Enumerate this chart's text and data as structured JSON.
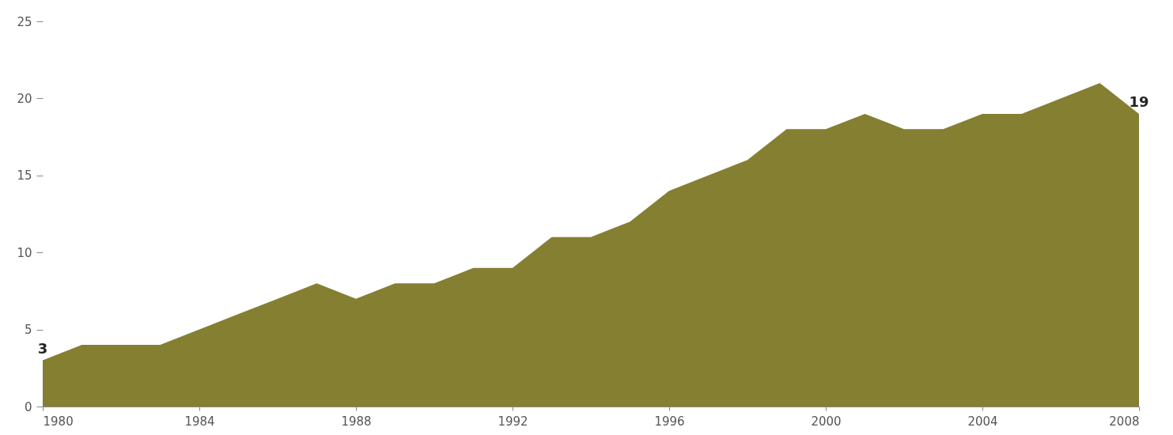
{
  "chart_data": {
    "type": "area",
    "x": [
      1980,
      1981,
      1982,
      1983,
      1984,
      1985,
      1986,
      1987,
      1988,
      1989,
      1990,
      1991,
      1992,
      1993,
      1994,
      1995,
      1996,
      1997,
      1998,
      1999,
      2000,
      2001,
      2002,
      2003,
      2004,
      2005,
      2006,
      2007,
      2008
    ],
    "series": [
      {
        "color": "#857f32",
        "values": [
          3,
          4,
          4,
          4,
          5,
          6,
          7,
          8,
          7,
          8,
          8,
          9,
          9,
          11,
          11,
          12,
          14,
          15,
          16,
          18,
          18,
          19,
          18,
          18,
          19,
          19,
          20,
          21,
          19
        ],
        "value_labels": [
          "3",
          null,
          null,
          null,
          null,
          null,
          null,
          null,
          null,
          null,
          null,
          null,
          null,
          null,
          null,
          null,
          null,
          null,
          null,
          null,
          null,
          null,
          null,
          null,
          null,
          null,
          null,
          null,
          "19"
        ]
      }
    ],
    "xlim": [
      1980,
      2008
    ],
    "xticks": [
      1980,
      1984,
      1988,
      1992,
      1996,
      2000,
      2004,
      2008
    ],
    "ylim": [
      0,
      25
    ],
    "yticks": [
      0,
      5,
      10,
      15,
      20,
      25
    ],
    "grid": false
  }
}
